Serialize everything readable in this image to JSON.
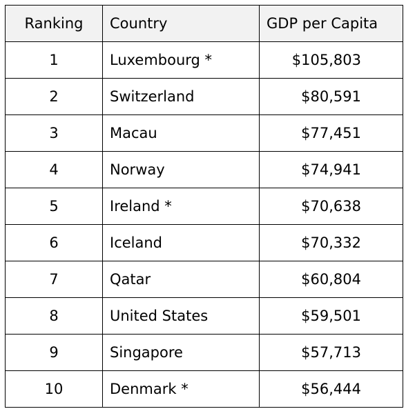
{
  "table": {
    "headers": {
      "ranking": "Ranking",
      "country": "Country",
      "gdp": "GDP per Capita"
    },
    "rows": [
      {
        "rank": "1",
        "country": "Luxembourg *",
        "gdp": "$105,803"
      },
      {
        "rank": "2",
        "country": "Switzerland",
        "gdp": "$80,591"
      },
      {
        "rank": "3",
        "country": "Macau",
        "gdp": "$77,451"
      },
      {
        "rank": "4",
        "country": "Norway",
        "gdp": "$74,941"
      },
      {
        "rank": "5",
        "country": "Ireland *",
        "gdp": "$70,638"
      },
      {
        "rank": "6",
        "country": "Iceland",
        "gdp": "$70,332"
      },
      {
        "rank": "7",
        "country": "Qatar",
        "gdp": "$60,804"
      },
      {
        "rank": "8",
        "country": "United States",
        "gdp": "$59,501"
      },
      {
        "rank": "9",
        "country": "Singapore",
        "gdp": "$57,713"
      },
      {
        "rank": "10",
        "country": "Denmark *",
        "gdp": "$56,444"
      }
    ]
  }
}
